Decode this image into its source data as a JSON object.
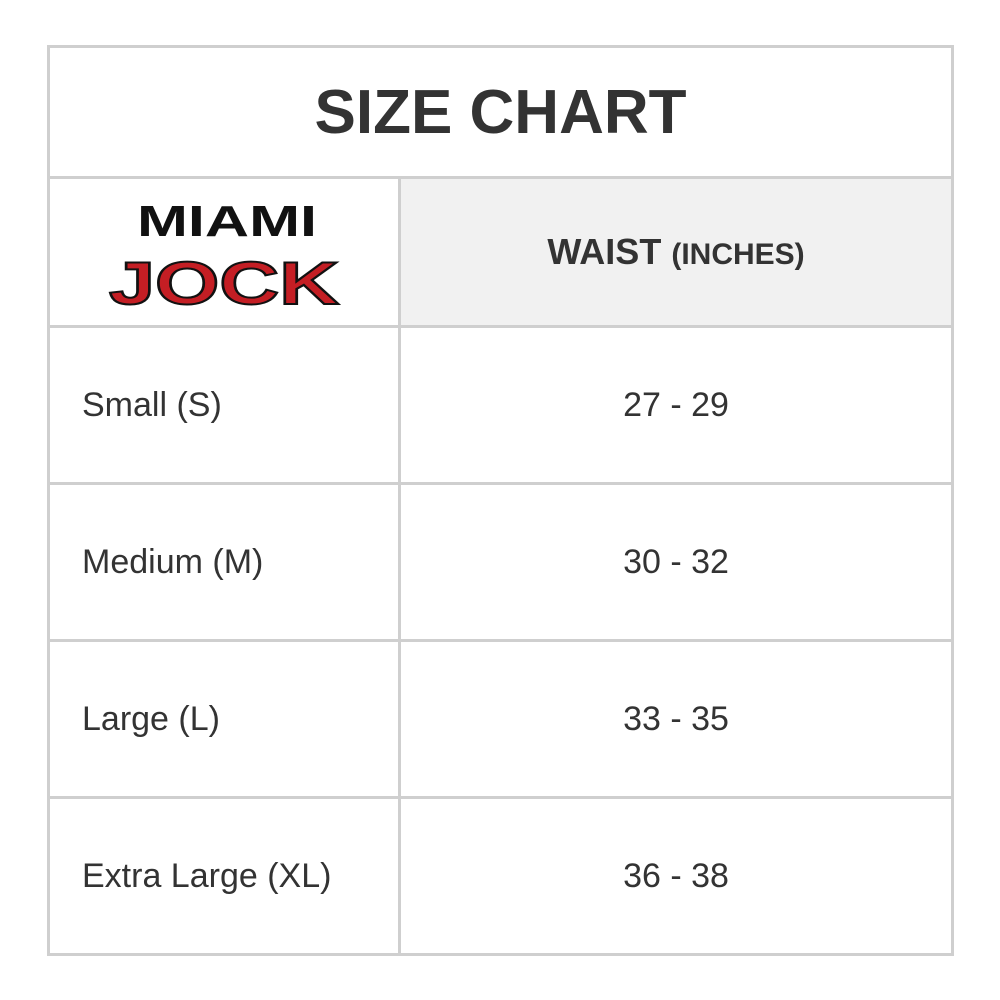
{
  "title": "SIZE CHART",
  "logo": {
    "line1": "MIAMI",
    "line2": "JOCK",
    "brand_color": "#c41e24"
  },
  "header": {
    "waist": "WAIST",
    "unit": "(INCHES)"
  },
  "rows": [
    {
      "size": "Small (S)",
      "waist": "27 - 29"
    },
    {
      "size": "Medium (M)",
      "waist": "30 - 32"
    },
    {
      "size": "Large (L)",
      "waist": "33 - 35"
    },
    {
      "size": "Extra Large (XL)",
      "waist": "36 - 38"
    }
  ]
}
